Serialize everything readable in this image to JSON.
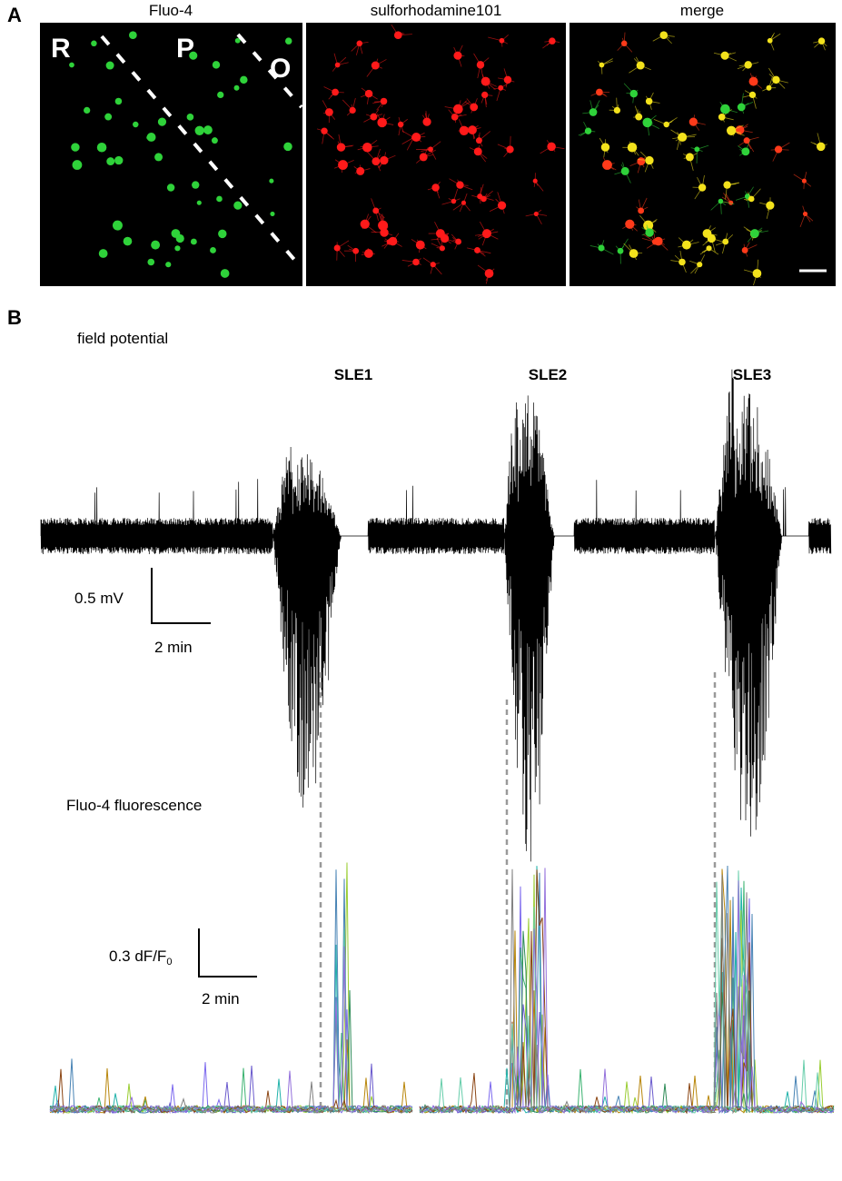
{
  "panel_a": {
    "label": "A",
    "images": [
      {
        "title": "Fluo-4"
      },
      {
        "title": "sulforhodamine101"
      },
      {
        "title": "merge"
      }
    ],
    "regions": [
      "R",
      "P",
      "O"
    ]
  },
  "panel_b": {
    "label": "B",
    "field_title": "field potential",
    "events": [
      "SLE1",
      "SLE2",
      "SLE3"
    ],
    "field_scale": {
      "amplitude": "0.5 mV",
      "time": "2 min"
    },
    "fluo_title": "Fluo-4 fluorescence",
    "fluo_scale": {
      "amplitude": "0.3 dF/F",
      "amplitude_subscript": "0",
      "time": "2 min"
    }
  }
}
